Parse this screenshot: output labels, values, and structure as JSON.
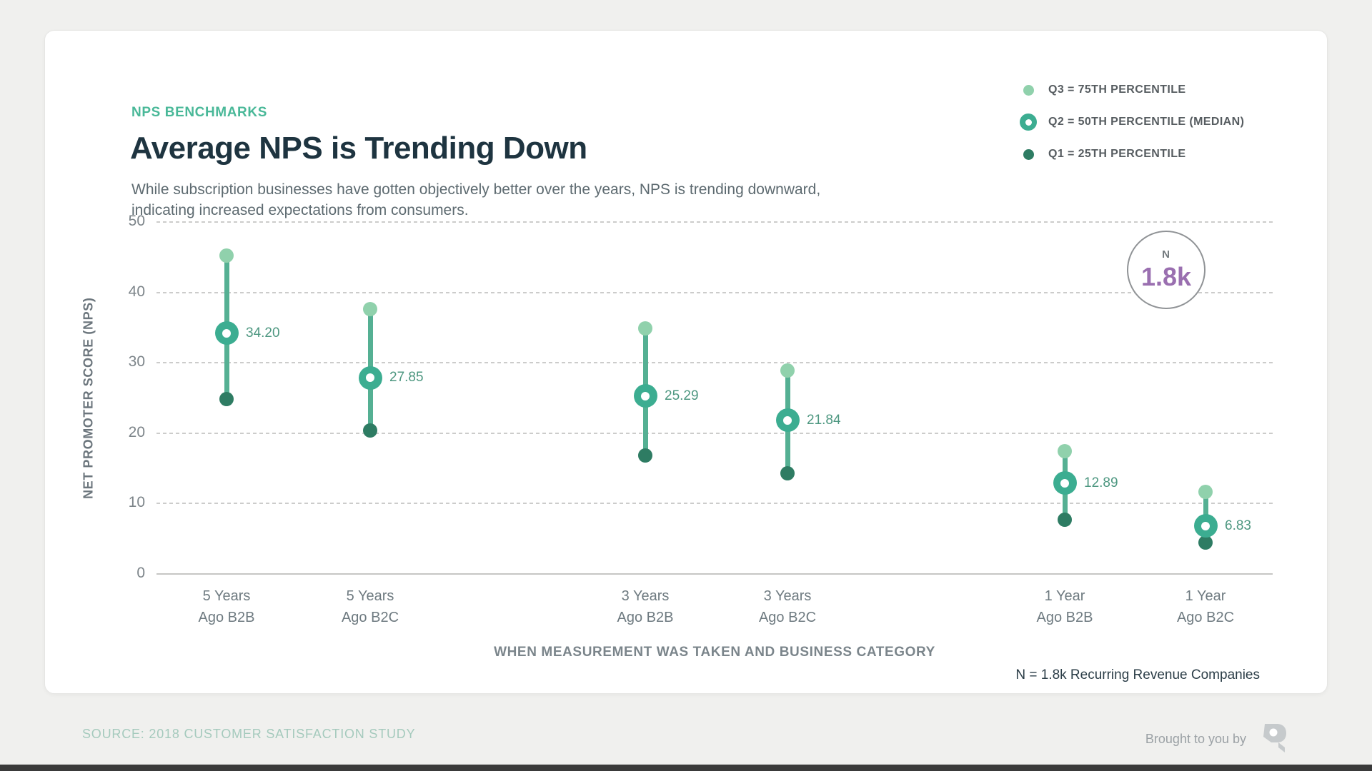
{
  "page": {
    "eyebrow": "NPS BENCHMARKS",
    "title": "Average NPS is Trending Down",
    "subtitle_line1": "While subscription businesses have gotten objectively better over the years, NPS is trending downward,",
    "subtitle_line2": "indicating increased expectations from consumers.",
    "footnote": "N = 1.8k Recurring Revenue Companies",
    "source": "SOURCE: 2018 CUSTOMER SATISFACTION STUDY",
    "brought_by": "Brought to you by"
  },
  "badge": {
    "label": "N",
    "value": "1.8k"
  },
  "legend": {
    "items": [
      {
        "label": "Q3 = 75TH PERCENTILE",
        "marker": "filled-dot",
        "color": "#90d1ac"
      },
      {
        "label": "Q2 = 50TH PERCENTILE (MEDIAN)",
        "marker": "ring",
        "color": "#3cad91"
      },
      {
        "label": "Q1 = 25TH PERCENTILE",
        "marker": "filled-dot",
        "color": "#2e7c63"
      }
    ]
  },
  "chart_data": {
    "type": "scatter",
    "subtype": "vertical-range-dot",
    "title": "Average NPS is Trending Down",
    "categories": [
      "5 Years Ago B2B",
      "5 Years Ago B2C",
      "3 Years Ago B2B",
      "3 Years Ago B2C",
      "1 Year Ago B2B",
      "1 Year Ago B2C"
    ],
    "tick_lines": [
      [
        "5 Years",
        "Ago B2B"
      ],
      [
        "5 Years",
        "Ago B2C"
      ],
      [
        "3 Years",
        "Ago B2B"
      ],
      [
        "3 Years",
        "Ago B2C"
      ],
      [
        "1 Year",
        "Ago B2B"
      ],
      [
        "1 Year",
        "Ago B2C"
      ]
    ],
    "series": [
      {
        "name": "Q3 = 75TH PERCENTILE",
        "values": [
          45.2,
          37.6,
          34.9,
          28.9,
          17.4,
          11.7
        ]
      },
      {
        "name": "Q2 = 50TH PERCENTILE (MEDIAN)",
        "values": [
          34.2,
          27.85,
          25.29,
          21.84,
          12.89,
          6.83
        ]
      },
      {
        "name": "Q1 = 25TH PERCENTILE",
        "values": [
          24.8,
          20.4,
          16.8,
          14.3,
          7.7,
          4.5
        ]
      }
    ],
    "data_labels": [
      "34.20",
      "27.85",
      "25.29",
      "21.84",
      "12.89",
      "6.83"
    ],
    "xlabel": "WHEN MEASUREMENT WAS TAKEN AND BUSINESS CATEGORY",
    "ylabel": "NET PROMOTER SCORE (NPS)",
    "ylim": [
      0,
      50
    ],
    "yticks": [
      0,
      10,
      20,
      30,
      40,
      50
    ],
    "grid": true,
    "legend_position": "top-right",
    "sample_size": "1.8k"
  },
  "colors": {
    "accent_teal": "#49b898",
    "line": "#55b093",
    "q3": "#90d1ac",
    "q2": "#3cad91",
    "q1": "#2e7c63",
    "title": "#1e3440",
    "badge_value": "#9a6fb0"
  }
}
